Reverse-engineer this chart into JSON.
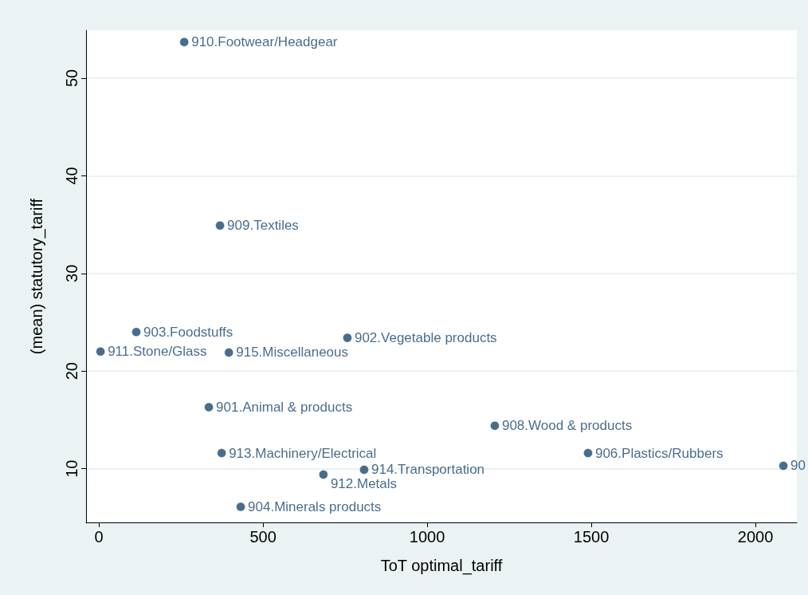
{
  "chart_data": {
    "type": "scatter",
    "xlabel": "ToT optimal_tariff",
    "ylabel": "(mean) statutory_tariff",
    "x": [
      260,
      369,
      114,
      5,
      396,
      757,
      335,
      1206,
      374,
      1490,
      808,
      684,
      432,
      2085
    ],
    "values": [
      53.7,
      34.9,
      24.0,
      22.0,
      21.9,
      23.4,
      16.3,
      14.4,
      11.6,
      11.6,
      9.9,
      9.4,
      6.1,
      10.3
    ],
    "color": "#1a476f",
    "marker": "circle",
    "grid": "y",
    "xlim": [
      -39,
      2126
    ],
    "xticks": [
      0,
      500,
      1000,
      1500,
      2000
    ],
    "ylim": [
      4.5,
      54.9
    ],
    "yticks": [
      10,
      20,
      30,
      40,
      50
    ],
    "annotations": [
      {
        "text": "910.Footwear/Headgear",
        "x": 260,
        "y": 53.7
      },
      {
        "text": "909.Textiles",
        "x": 369,
        "y": 34.9
      },
      {
        "text": "903.Foodstuffs",
        "x": 114,
        "y": 24.0
      },
      {
        "text": "911.Stone/Glass",
        "x": 5,
        "y": 22.0
      },
      {
        "text": "915.Miscellaneous",
        "x": 396,
        "y": 21.9
      },
      {
        "text": "902.Vegetable products",
        "x": 757,
        "y": 23.4
      },
      {
        "text": "901.Animal & products",
        "x": 335,
        "y": 16.3
      },
      {
        "text": "908.Wood & products",
        "x": 1206,
        "y": 14.4
      },
      {
        "text": "913.Machinery/Electrical",
        "x": 374,
        "y": 11.6
      },
      {
        "text": "906.Plastics/Rubbers",
        "x": 1490,
        "y": 11.6
      },
      {
        "text": "914.Transportation",
        "x": 808,
        "y": 9.9
      },
      {
        "text": "912.Metals",
        "x": 684,
        "y": 9.4
      },
      {
        "text": "904.Minerals products",
        "x": 432,
        "y": 6.1
      },
      {
        "text": "90",
        "x": 2085,
        "y": 10.3
      }
    ]
  }
}
